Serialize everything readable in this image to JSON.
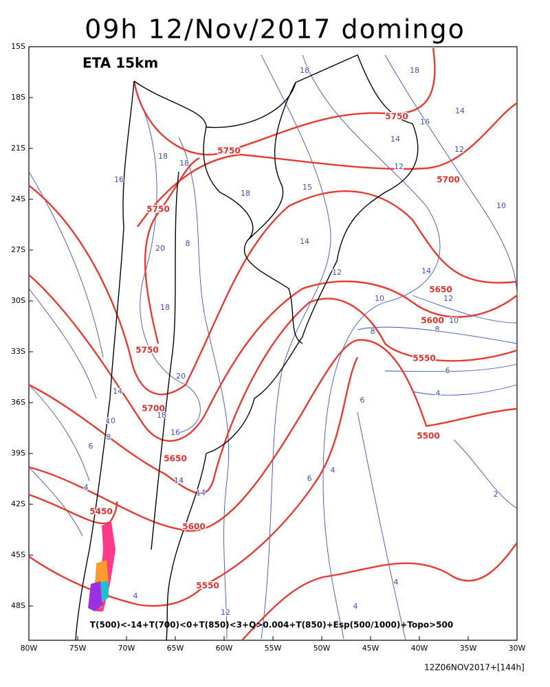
{
  "header": {
    "title": "09h 12/Nov/2017 domingo"
  },
  "map": {
    "model": "ETA 15km",
    "lat_labels": [
      "15S",
      "18S",
      "21S",
      "24S",
      "27S",
      "30S",
      "33S",
      "36S",
      "39S",
      "42S",
      "45S",
      "48S"
    ],
    "lon_labels": [
      "80W",
      "75W",
      "70W",
      "65W",
      "60W",
      "55W",
      "50W",
      "45W",
      "40W",
      "35W",
      "30W"
    ],
    "height_contour_labels": [
      5750,
      5750,
      5700,
      5750,
      5650,
      5600,
      5750,
      5550,
      5700,
      5500,
      5650,
      5450,
      5600,
      5550
    ],
    "thickness_contour_labels": [
      18,
      18,
      14,
      16,
      14,
      12,
      18,
      18,
      12,
      16,
      15,
      18,
      10,
      8,
      14,
      20,
      14,
      12,
      12,
      10,
      18,
      10,
      8,
      8,
      20,
      6,
      14,
      18,
      6,
      16,
      10,
      4,
      8,
      6,
      4,
      6,
      14,
      14,
      4,
      2,
      4,
      4,
      4,
      12
    ],
    "legend": "T(500)<-14+T(700)<0+T(850)<3+Q>0.004+T(850)+Esp(500/1000)+Topo>500"
  },
  "footer": {
    "run": "12Z06NOV2017+[144h]"
  }
}
